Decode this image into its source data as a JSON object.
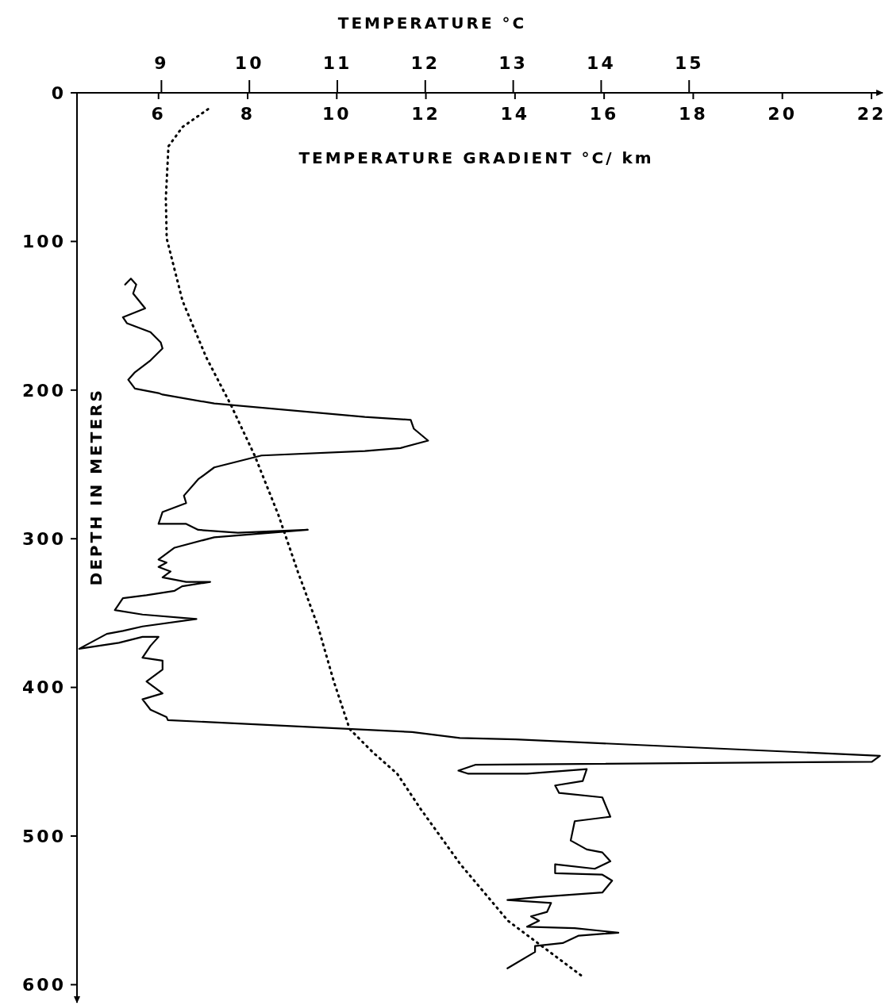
{
  "chart_data": {
    "type": "line",
    "xlabel": "TEMPERATURE GRADIENT °C/ km",
    "x2label": "TEMPERATURE °C",
    "ylabel": "DEPTH IN METERS",
    "xlim": [
      4.17,
      22.25
    ],
    "xticks": [
      6,
      8,
      10,
      12,
      14,
      16,
      18,
      20,
      22
    ],
    "x2lim": [
      8.04,
      17.2
    ],
    "x2ticks": [
      9,
      10,
      11,
      12,
      13,
      14,
      15
    ],
    "ylim": [
      612,
      0
    ],
    "yticks": [
      0,
      100,
      200,
      300,
      400,
      500,
      600
    ],
    "marker": "none",
    "series": [
      {
        "color": "#000000",
        "line_style": "solid",
        "x": [
          5.25,
          5.38,
          5.5,
          5.43,
          5.7,
          5.2,
          5.29,
          5.82,
          6.05,
          6.09,
          5.82,
          5.47,
          5.32,
          5.47,
          6,
          6.09,
          7.25,
          10.63,
          11.66,
          11.73,
          12.05,
          11.43,
          10.63,
          8.31,
          7.25,
          6.89,
          6.57,
          6.62,
          6.09,
          6,
          6.62,
          6.89,
          7.78,
          9.35,
          7.25,
          6.36,
          6,
          6.18,
          6,
          6.27,
          6.09,
          6.62,
          7.16,
          6.53,
          6.36,
          5.73,
          5.2,
          5.02,
          5.64,
          6.85,
          5.64,
          5.2,
          4.84,
          4.22,
          5.11,
          5.64,
          6,
          5.82,
          5.64,
          6.09,
          6.09,
          5.73,
          6.09,
          5.64,
          5.82,
          6.18,
          6.21,
          11.69,
          12.76,
          14.01,
          22.19,
          22.01,
          13.12,
          12.73,
          12.94,
          14.27,
          15.61,
          15.52,
          14.9,
          14.99,
          15.96,
          16.14,
          15.34,
          15.25,
          15.61,
          15.96,
          16.14,
          15.79,
          14.9,
          14.9,
          15.96,
          16.18,
          15.96,
          14.54,
          13.83,
          14.81,
          14.72,
          14.36,
          14.54,
          14.27,
          15.34,
          16.32,
          15.43,
          15.07,
          14.45,
          14.45,
          13.83
        ],
        "values": [
          129,
          125,
          129,
          135,
          145,
          151,
          155,
          161,
          168,
          172,
          180,
          188,
          193,
          199,
          202,
          203,
          209,
          218,
          220,
          226,
          234,
          239,
          241,
          244,
          252,
          260,
          271,
          276,
          282,
          290,
          290,
          294,
          296,
          294,
          299,
          306,
          314,
          316,
          319,
          322,
          326,
          329,
          329,
          332,
          335,
          338,
          340,
          348,
          351,
          354,
          359,
          362,
          364,
          374,
          370,
          366,
          366,
          372,
          380,
          382,
          388,
          396,
          404,
          408,
          415,
          420,
          422,
          430,
          434,
          435,
          446,
          450,
          452,
          456,
          458,
          458,
          455,
          463,
          466,
          471,
          474,
          487,
          490,
          503,
          509,
          511,
          517,
          522,
          519,
          525,
          526,
          530,
          538,
          541,
          543,
          545,
          551,
          554,
          557,
          561,
          562,
          565,
          567,
          572,
          574,
          578,
          589
        ]
      },
      {
        "color": "#000000",
        "line_style": "dotted",
        "axis": "x2",
        "x": [
          9.53,
          9.24,
          9.08,
          9.05,
          9.06,
          9.24,
          9.51,
          9.79,
          10.06,
          10.33,
          10.55,
          10.78,
          10.96,
          11.14,
          11.41,
          11.68,
          11.95,
          12.4,
          12.94,
          13.8
        ],
        "values": [
          11,
          23,
          36,
          71,
          98,
          140,
          178,
          210,
          244,
          284,
          322,
          359,
          396,
          428,
          444,
          458,
          482,
          519,
          557,
          595
        ]
      }
    ]
  }
}
